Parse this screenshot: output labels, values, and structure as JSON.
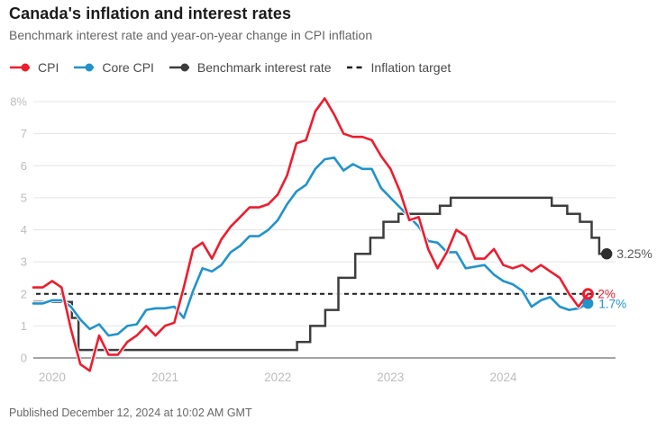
{
  "header": {
    "title": "Canada's inflation and interest rates",
    "subtitle": "Benchmark interest rate and year-on-year change in CPI inflation"
  },
  "legend": {
    "items": [
      {
        "label": "CPI",
        "color": "#ee1c2d",
        "marker": "line-dot"
      },
      {
        "label": "Core CPI",
        "color": "#2093cb",
        "marker": "line-dot"
      },
      {
        "label": "Benchmark interest rate",
        "color": "#3d3d3d",
        "marker": "line-dot"
      },
      {
        "label": "Inflation target",
        "color": "#1a1a1a",
        "marker": "dashes"
      }
    ]
  },
  "footer": {
    "published": "Published December 12, 2024 at 10:02 AM GMT"
  },
  "chart_data": {
    "type": "line",
    "title": "Canada's inflation and interest rates",
    "subtitle": "Benchmark interest rate and year-on-year change in CPI inflation",
    "unit": "%",
    "grid": "horizontal",
    "legend_position": "top",
    "x_monthly_start": "2019-11",
    "x_tick_labels": [
      "2020",
      "2021",
      "2022",
      "2023",
      "2024"
    ],
    "y_ticks": [
      {
        "label": "8%",
        "value": 8
      },
      {
        "label": "7",
        "value": 7
      },
      {
        "label": "6",
        "value": 6
      },
      {
        "label": "5",
        "value": 5
      },
      {
        "label": "4",
        "value": 4
      },
      {
        "label": "3",
        "value": 3
      },
      {
        "label": "2",
        "value": 2
      },
      {
        "label": "1",
        "value": 1
      },
      {
        "label": "0",
        "value": 0
      }
    ],
    "ylim": [
      -0.6,
      8.4
    ],
    "series": [
      {
        "name": "CPI",
        "type": "monthly-line",
        "color": "#ee1c2d",
        "end_label": "2%",
        "end_marker": "ring",
        "monthly": [
          2.2,
          2.2,
          2.4,
          2.2,
          0.9,
          -0.2,
          -0.4,
          0.7,
          0.1,
          0.1,
          0.5,
          0.7,
          1.0,
          0.7,
          1.0,
          1.1,
          2.2,
          3.4,
          3.6,
          3.1,
          3.7,
          4.1,
          4.4,
          4.7,
          4.7,
          4.8,
          5.1,
          5.7,
          6.7,
          6.8,
          7.7,
          8.1,
          7.6,
          7.0,
          6.9,
          6.9,
          6.8,
          6.3,
          5.9,
          5.2,
          4.3,
          4.4,
          3.4,
          2.8,
          3.3,
          4.0,
          3.8,
          3.1,
          3.1,
          3.4,
          2.9,
          2.8,
          2.9,
          2.7,
          2.9,
          2.7,
          2.5,
          2.0,
          1.6,
          2.0
        ]
      },
      {
        "name": "Core CPI",
        "type": "monthly-line",
        "color": "#2093cb",
        "end_label": "1.7%",
        "end_marker": "dot",
        "monthly": [
          1.7,
          1.7,
          1.8,
          1.8,
          1.6,
          1.2,
          0.9,
          1.05,
          0.7,
          0.75,
          1.0,
          1.05,
          1.5,
          1.55,
          1.55,
          1.6,
          1.25,
          2.1,
          2.8,
          2.7,
          2.9,
          3.3,
          3.5,
          3.8,
          3.8,
          4.0,
          4.3,
          4.8,
          5.2,
          5.4,
          5.9,
          6.2,
          6.25,
          5.85,
          6.05,
          5.9,
          5.9,
          5.3,
          5.0,
          4.7,
          4.4,
          4.1,
          3.65,
          3.6,
          3.3,
          3.3,
          2.8,
          2.85,
          2.9,
          2.6,
          2.4,
          2.3,
          2.1,
          1.6,
          1.8,
          1.9,
          1.6,
          1.5,
          1.55,
          1.7
        ]
      },
      {
        "name": "Benchmark interest rate",
        "type": "step",
        "color": "#3d3d3d",
        "end_label": "3.25%",
        "end_marker": "dot",
        "steps": [
          [
            0,
            1.75
          ],
          [
            4.1,
            1.25
          ],
          [
            4.8,
            0.25
          ],
          [
            28.05,
            0.5
          ],
          [
            29.45,
            1.0
          ],
          [
            31.05,
            1.5
          ],
          [
            32.45,
            2.5
          ],
          [
            34.25,
            3.25
          ],
          [
            35.85,
            3.75
          ],
          [
            37.25,
            4.25
          ],
          [
            38.85,
            4.5
          ],
          [
            43.25,
            4.75
          ],
          [
            44.4,
            5.0
          ],
          [
            55.15,
            4.75
          ],
          [
            56.8,
            4.5
          ],
          [
            58.15,
            4.25
          ],
          [
            59.4,
            3.75
          ],
          [
            60.2,
            3.25
          ]
        ],
        "end_index": 61.0
      },
      {
        "name": "Inflation target",
        "type": "target",
        "color": "#1a1a1a",
        "value": 2
      }
    ]
  }
}
